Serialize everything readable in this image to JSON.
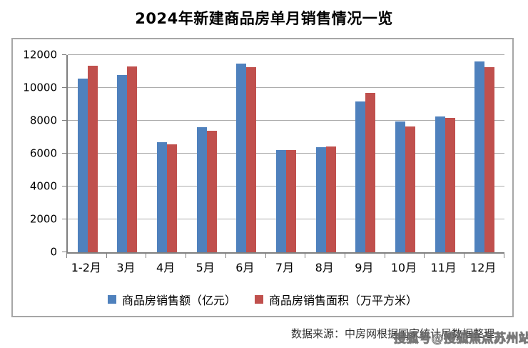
{
  "page": {
    "title": "2024年新建商品房单月销售情况一览",
    "source_note": "数据来源：中房网根据国家统计局数据整理",
    "watermark": "搜狐号@搜狐焦点苏州站"
  },
  "chart_data": {
    "type": "bar",
    "title": "2024年新建商品房单月销售情况一览",
    "categories": [
      "1-2月",
      "3月",
      "4月",
      "5月",
      "6月",
      "7月",
      "8月",
      "9月",
      "10月",
      "11月",
      "12月"
    ],
    "series": [
      {
        "name": "商品房销售额（亿元）",
        "color": "#4F81BD",
        "values": [
          10566,
          10789,
          6712,
          7598,
          11468,
          6197,
          6393,
          9157,
          7975,
          8270,
          11625
        ]
      },
      {
        "name": "商品房销售面积（万平方米）",
        "color": "#C0504D",
        "values": [
          11369,
          11299,
          6584,
          7390,
          11274,
          6233,
          6453,
          9682,
          7646,
          8188,
          11267
        ]
      }
    ],
    "xlabel": "",
    "ylabel": "",
    "ylim": [
      0,
      12000
    ],
    "ytick_step": 2000,
    "grid": true,
    "legend_position": "bottom"
  }
}
